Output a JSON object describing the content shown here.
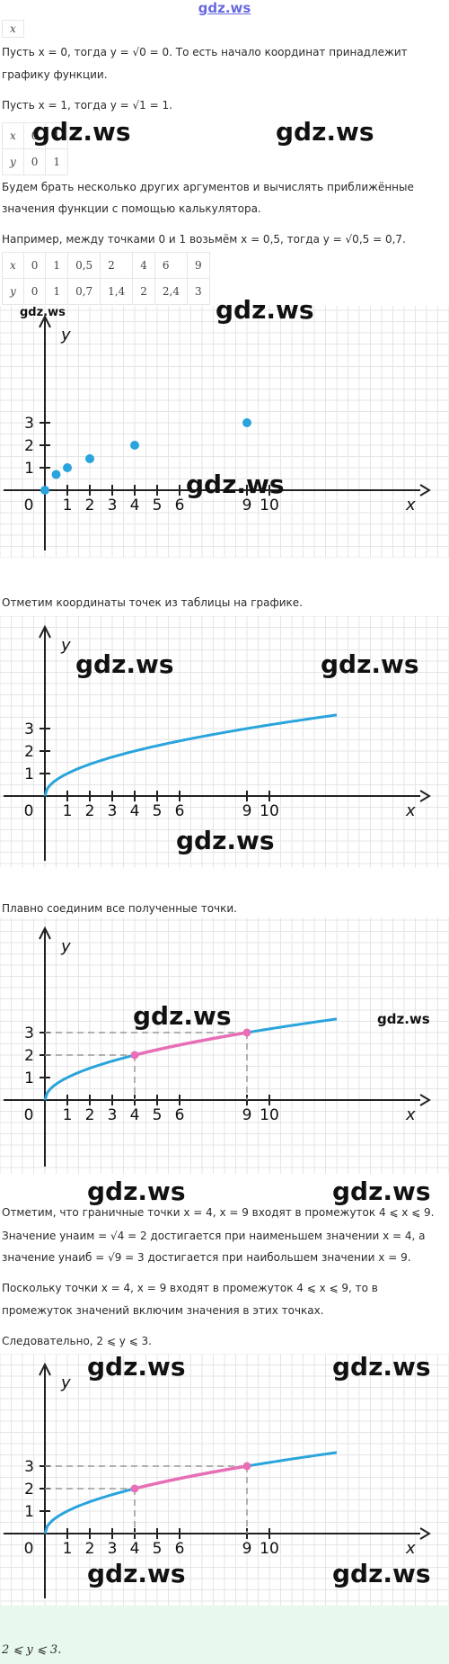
{
  "site_name": "gdz.ws",
  "watermark": "gdz.ws",
  "lines": {
    "p1": "Пусть x = 0, тогда y = √0 = 0. То есть начало координат принадлежит",
    "p1b": "графику функции.",
    "p2": "Пусть x = 1, тогда y = √1 = 1.",
    "p3": "Будем брать несколько других аргументов и вычислять приближённые",
    "p3b": "значения функции с помощью калькулятора.",
    "p4": "Например, между точками 0 и 1 возьмём x = 0,5, тогда y = √0,5 = 0,7.",
    "p5": "Отметим координаты точек из таблицы на графике.",
    "p6": "Плавно соединим все полученные точки.",
    "p7": "Отметим, что граничные точки x = 4, x = 9 входят в промежуток 4 ⩽ x ⩽ 9.",
    "p8": "Значение yнаим = √4 = 2 достигается при наименьшем значении x = 4, а",
    "p8b": "значение yнаиб = √9 = 3 достигается при наибольшем значении x = 9.",
    "p9": "Поскольку точки x = 4, x = 9 входят в промежуток 4 ⩽ x ⩽ 9, то в",
    "p9b": "промежуток значений включим значения в этих точках.",
    "p10": "Следовательно, 2 ⩽ y ⩽ 3.",
    "answer": "2 ⩽ y ⩽ 3."
  },
  "table_top": {
    "x_label": "x"
  },
  "table1": {
    "x_label": "x",
    "y_label": "y",
    "x": [
      "0",
      "1"
    ],
    "y": [
      "0",
      "1"
    ]
  },
  "table2": {
    "x_label": "x",
    "y_label": "y",
    "x": [
      "0",
      "1",
      "0,5",
      "2",
      "4",
      "6",
      "9"
    ],
    "y": [
      "0",
      "1",
      "0,7",
      "1,4",
      "2",
      "2,4",
      "3"
    ]
  },
  "axes": {
    "x_label": "x",
    "y_label": "y",
    "x_ticks": [
      "0",
      "1",
      "2",
      "3",
      "4",
      "5",
      "6",
      "9",
      "10"
    ],
    "y_ticks": [
      "1",
      "2",
      "3"
    ]
  },
  "colors": {
    "curve": "#2aa4dc",
    "highlight": "#e86fb5",
    "points": "#2aa4dc",
    "grid": "#e5e5e5"
  },
  "chart_data": [
    {
      "type": "scatter",
      "x": [
        0,
        0.5,
        1,
        2,
        4,
        9
      ],
      "y": [
        0,
        0.7,
        1,
        1.4,
        2,
        3
      ]
    },
    {
      "type": "line",
      "function": "y = √x",
      "x_range": [
        0,
        13
      ]
    },
    {
      "type": "line",
      "function": "y = √x",
      "highlight_x": [
        4,
        9
      ],
      "highlight_y": [
        2,
        3
      ]
    },
    {
      "type": "line",
      "function": "y = √x",
      "highlight_x": [
        4,
        9
      ],
      "highlight_y": [
        2,
        3
      ]
    }
  ]
}
